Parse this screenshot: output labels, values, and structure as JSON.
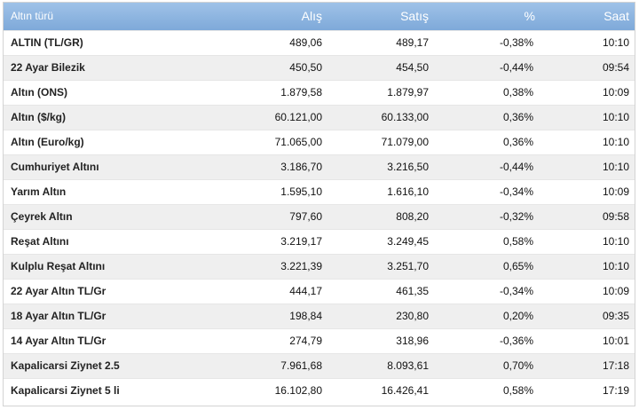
{
  "header": {
    "name": "Altın türü",
    "alis": "Alış",
    "satis": "Satış",
    "pct": "%",
    "saat": "Saat"
  },
  "rows": [
    {
      "name": "ALTIN (TL/GR)",
      "alis": "489,06",
      "satis": "489,17",
      "pct": "-0,38%",
      "saat": "10:10"
    },
    {
      "name": "22 Ayar Bilezik",
      "alis": "450,50",
      "satis": "454,50",
      "pct": "-0,44%",
      "saat": "09:54"
    },
    {
      "name": "Altın (ONS)",
      "alis": "1.879,58",
      "satis": "1.879,97",
      "pct": "0,38%",
      "saat": "10:09"
    },
    {
      "name": "Altın ($/kg)",
      "alis": "60.121,00",
      "satis": "60.133,00",
      "pct": "0,36%",
      "saat": "10:10"
    },
    {
      "name": "Altın (Euro/kg)",
      "alis": "71.065,00",
      "satis": "71.079,00",
      "pct": "0,36%",
      "saat": "10:10"
    },
    {
      "name": "Cumhuriyet Altını",
      "alis": "3.186,70",
      "satis": "3.216,50",
      "pct": "-0,44%",
      "saat": "10:10"
    },
    {
      "name": "Yarım Altın",
      "alis": "1.595,10",
      "satis": "1.616,10",
      "pct": "-0,34%",
      "saat": "10:09"
    },
    {
      "name": "Çeyrek Altın",
      "alis": "797,60",
      "satis": "808,20",
      "pct": "-0,32%",
      "saat": "09:58"
    },
    {
      "name": "Reşat Altını",
      "alis": "3.219,17",
      "satis": "3.249,45",
      "pct": "0,58%",
      "saat": "10:10"
    },
    {
      "name": "Kulplu Reşat Altını",
      "alis": "3.221,39",
      "satis": "3.251,70",
      "pct": "0,65%",
      "saat": "10:10"
    },
    {
      "name": "22 Ayar Altın TL/Gr",
      "alis": "444,17",
      "satis": "461,35",
      "pct": "-0,34%",
      "saat": "10:09"
    },
    {
      "name": "18 Ayar Altın TL/Gr",
      "alis": "198,84",
      "satis": "230,80",
      "pct": "0,20%",
      "saat": "09:35"
    },
    {
      "name": "14 Ayar Altın TL/Gr",
      "alis": "274,79",
      "satis": "318,96",
      "pct": "-0,36%",
      "saat": "10:01"
    },
    {
      "name": "Kapalicarsi Ziynet 2.5",
      "alis": "7.961,68",
      "satis": "8.093,61",
      "pct": "0,70%",
      "saat": "17:18"
    },
    {
      "name": "Kapalicarsi Ziynet 5 li",
      "alis": "16.102,80",
      "satis": "16.426,41",
      "pct": "0,58%",
      "saat": "17:19"
    }
  ],
  "colors": {
    "header_bg": "#8fb6e2",
    "row_alt_bg": "#efefef"
  }
}
